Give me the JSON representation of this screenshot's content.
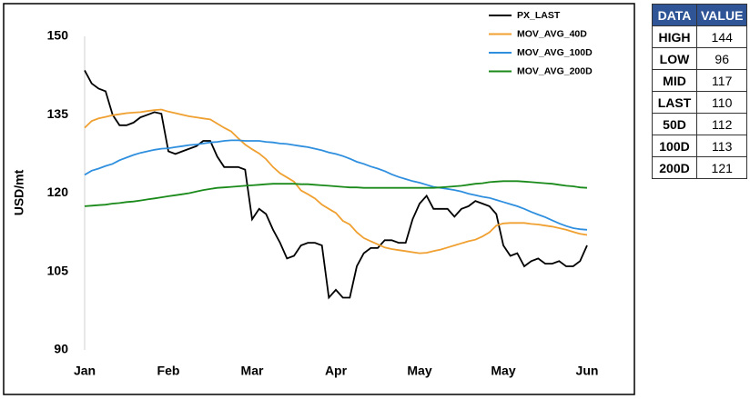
{
  "chart_data": {
    "type": "line",
    "ylabel": "USD/mt",
    "categories": [
      "Jan",
      null,
      null,
      null,
      null,
      null,
      null,
      null,
      null,
      null,
      null,
      null,
      "Feb",
      null,
      null,
      null,
      null,
      null,
      null,
      null,
      null,
      null,
      null,
      null,
      "Mar",
      null,
      null,
      null,
      null,
      null,
      null,
      null,
      null,
      null,
      null,
      null,
      "Apr",
      null,
      null,
      null,
      null,
      null,
      null,
      null,
      null,
      null,
      null,
      null,
      "May",
      null,
      null,
      null,
      null,
      null,
      null,
      null,
      null,
      null,
      null,
      null,
      "May",
      null,
      null,
      null,
      null,
      null,
      null,
      null,
      null,
      null,
      null,
      null,
      "Jun"
    ],
    "series": [
      {
        "name": "PX_LAST",
        "color": "#000000",
        "values": [
          143.5,
          141,
          140,
          139.5,
          135,
          133,
          133,
          133.5,
          134.5,
          135,
          135.5,
          135.2,
          128,
          127.5,
          128,
          128.5,
          129,
          130,
          130,
          127,
          125,
          125,
          125,
          124.5,
          115,
          117,
          116,
          113,
          110.5,
          107.5,
          108,
          110,
          110.5,
          110.5,
          110,
          100,
          101.5,
          100,
          100,
          106,
          108.5,
          109.5,
          109.5,
          111,
          111,
          110.5,
          110.5,
          115,
          118,
          119.5,
          117,
          117,
          117,
          115.5,
          117,
          117.5,
          118.5,
          118,
          117.5,
          116,
          110,
          108,
          108.5,
          106,
          107,
          107.5,
          106.5,
          106.5,
          107,
          106,
          106,
          107,
          110
        ]
      },
      {
        "name": "MOV_AVG_40D",
        "color": "#f0a030",
        "values": [
          132.5,
          133.8,
          134.3,
          134.6,
          134.9,
          135.1,
          135.3,
          135.4,
          135.5,
          135.7,
          135.9,
          136,
          135.6,
          135.3,
          135,
          134.7,
          134.5,
          134.3,
          134.1,
          133.3,
          132.5,
          131.8,
          130.5,
          129.3,
          128.4,
          127.6,
          126.5,
          125,
          123.8,
          123,
          122.2,
          120.5,
          119.8,
          119,
          117.8,
          117,
          116.2,
          114.7,
          114,
          112.5,
          111.4,
          110.8,
          110.2,
          109.6,
          109.3,
          109.1,
          108.9,
          108.7,
          108.5,
          108.6,
          108.9,
          109.2,
          109.6,
          110,
          110.4,
          110.8,
          111.1,
          111.7,
          112.5,
          113.8,
          114.2,
          114.3,
          114.3,
          114.3,
          114.1,
          114,
          113.8,
          113.6,
          113.3,
          113,
          112.6,
          112.2,
          112
        ]
      },
      {
        "name": "MOV_AVG_100D",
        "color": "#2f8fdf",
        "values": [
          123.5,
          124.3,
          124.7,
          125.2,
          125.6,
          126.3,
          126.8,
          127.3,
          127.7,
          128,
          128.3,
          128.5,
          128.6,
          128.8,
          129,
          129.2,
          129.3,
          129.5,
          129.7,
          129.8,
          130,
          130.1,
          130.1,
          130,
          130,
          130,
          129.8,
          129.7,
          129.5,
          129.4,
          129.2,
          129,
          128.8,
          128.5,
          128.2,
          127.8,
          127.5,
          127.1,
          126.6,
          126,
          125.6,
          125.1,
          124.7,
          124.2,
          123.6,
          123.1,
          122.7,
          122.3,
          122,
          121.6,
          121.2,
          121,
          120.8,
          120.6,
          120.3,
          119.9,
          119.6,
          119.3,
          119.1,
          118.7,
          118.3,
          117.9,
          117.5,
          117,
          116.4,
          115.9,
          115.4,
          114.8,
          114.2,
          113.7,
          113.3,
          113.1,
          113
        ]
      },
      {
        "name": "MOV_AVG_200D",
        "color": "#1a8a1a",
        "values": [
          117.5,
          117.6,
          117.7,
          117.8,
          118,
          118.1,
          118.3,
          118.4,
          118.6,
          118.8,
          119,
          119.2,
          119.4,
          119.6,
          119.8,
          120,
          120.3,
          120.6,
          120.8,
          121,
          121.1,
          121.2,
          121.3,
          121.4,
          121.5,
          121.6,
          121.7,
          121.8,
          121.8,
          121.8,
          121.8,
          121.7,
          121.7,
          121.6,
          121.5,
          121.4,
          121.3,
          121.2,
          121.1,
          121.1,
          121,
          121,
          121,
          121,
          121,
          121,
          121,
          121,
          121,
          121,
          121,
          121.1,
          121.2,
          121.3,
          121.4,
          121.6,
          121.8,
          121.9,
          122.1,
          122.2,
          122.3,
          122.3,
          122.3,
          122.2,
          122.1,
          122,
          121.9,
          121.8,
          121.6,
          121.4,
          121.3,
          121.1,
          121
        ]
      }
    ],
    "ylim": [
      90,
      150
    ],
    "yticks": [
      90,
      105,
      120,
      135,
      150
    ],
    "legend": "top-right",
    "grid": false
  },
  "table": {
    "header": [
      "DATA",
      "VALUE"
    ],
    "rows": [
      [
        "HIGH",
        144
      ],
      [
        "LOW",
        96
      ],
      [
        "MID",
        117
      ],
      [
        "LAST",
        110
      ],
      [
        "50D",
        112
      ],
      [
        "100D",
        113
      ],
      [
        "200D",
        121
      ]
    ]
  }
}
